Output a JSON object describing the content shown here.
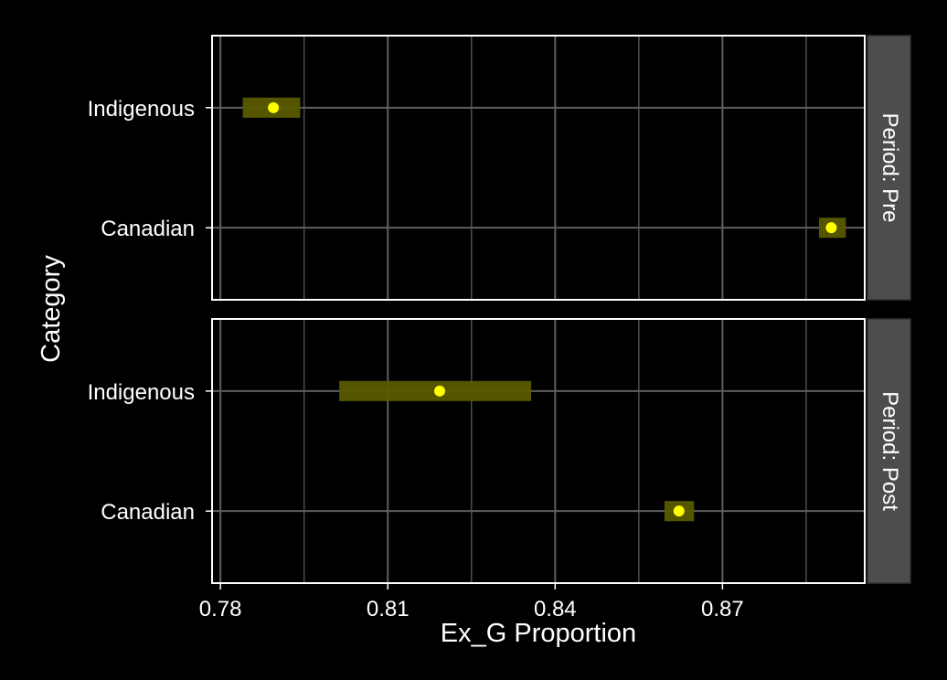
{
  "chart_data": {
    "type": "scatter",
    "xlabel": "Ex_G Proportion",
    "ylabel": "Category",
    "xlim": [
      0.7785,
      0.8955
    ],
    "x_ticks": [
      0.78,
      0.81,
      0.84,
      0.87
    ],
    "x_tick_labels": [
      "0.78",
      "0.81",
      "0.84",
      "0.87"
    ],
    "categories": [
      "Indigenous",
      "Canadian"
    ],
    "grid": true,
    "point_color": "#ffff00",
    "interval_color": "#5a5a00",
    "panels": [
      {
        "strip_label": "Period: Pre",
        "points": [
          {
            "category": "Indigenous",
            "value": 0.7895,
            "lower": 0.784,
            "upper": 0.7943
          },
          {
            "category": "Canadian",
            "value": 0.8895,
            "lower": 0.8873,
            "upper": 0.8921
          }
        ]
      },
      {
        "strip_label": "Period: Post",
        "points": [
          {
            "category": "Indigenous",
            "value": 0.8193,
            "lower": 0.8013,
            "upper": 0.8357
          },
          {
            "category": "Canadian",
            "value": 0.8622,
            "lower": 0.8596,
            "upper": 0.8649
          }
        ]
      }
    ]
  }
}
